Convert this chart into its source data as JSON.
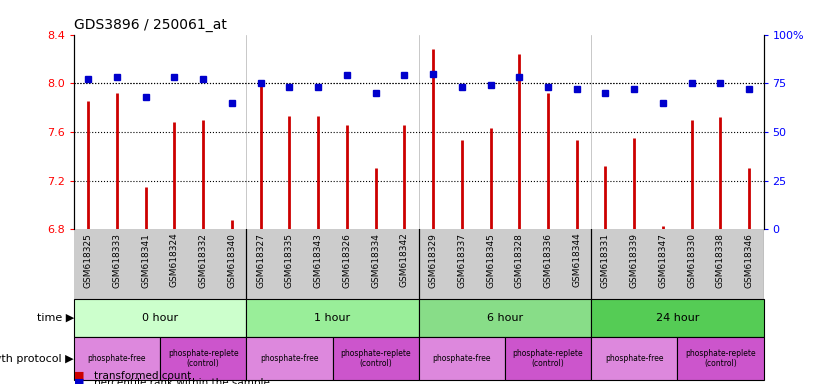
{
  "title": "GDS3896 / 250061_at",
  "samples": [
    "GSM618325",
    "GSM618333",
    "GSM618341",
    "GSM618324",
    "GSM618332",
    "GSM618340",
    "GSM618327",
    "GSM618335",
    "GSM618343",
    "GSM618326",
    "GSM618334",
    "GSM618342",
    "GSM618329",
    "GSM618337",
    "GSM618345",
    "GSM618328",
    "GSM618336",
    "GSM618344",
    "GSM618331",
    "GSM618339",
    "GSM618347",
    "GSM618330",
    "GSM618338",
    "GSM618346"
  ],
  "transformed_count": [
    7.85,
    7.92,
    7.15,
    7.68,
    7.7,
    6.88,
    8.0,
    7.73,
    7.73,
    7.66,
    7.3,
    7.66,
    8.28,
    7.53,
    7.63,
    8.24,
    7.92,
    7.53,
    7.32,
    7.55,
    6.83,
    7.7,
    7.72,
    7.3
  ],
  "percentile_rank": [
    77,
    78,
    68,
    78,
    77,
    65,
    75,
    73,
    73,
    79,
    70,
    79,
    80,
    73,
    74,
    78,
    73,
    72,
    70,
    72,
    65,
    75,
    75,
    72
  ],
  "ylim_left": [
    6.8,
    8.4
  ],
  "ylim_right": [
    0,
    100
  ],
  "yticks_left": [
    6.8,
    7.2,
    7.6,
    8.0,
    8.4
  ],
  "yticks_right": [
    0,
    25,
    50,
    75,
    100
  ],
  "ytick_labels_right": [
    "0",
    "25",
    "50",
    "75",
    "100%"
  ],
  "groups": [
    {
      "label": "0 hour",
      "start": 0,
      "end": 6,
      "color": "#ccffcc"
    },
    {
      "label": "1 hour",
      "start": 6,
      "end": 12,
      "color": "#99ee99"
    },
    {
      "label": "6 hour",
      "start": 12,
      "end": 18,
      "color": "#88dd88"
    },
    {
      "label": "24 hour",
      "start": 18,
      "end": 24,
      "color": "#55cc55"
    }
  ],
  "protocols": [
    {
      "label": "phosphate-free",
      "start": 0,
      "end": 3,
      "color": "#dd88dd"
    },
    {
      "label": "phosphate-replete\n(control)",
      "start": 3,
      "end": 6,
      "color": "#cc55cc"
    },
    {
      "label": "phosphate-free",
      "start": 6,
      "end": 9,
      "color": "#dd88dd"
    },
    {
      "label": "phosphate-replete\n(control)",
      "start": 9,
      "end": 12,
      "color": "#cc55cc"
    },
    {
      "label": "phosphate-free",
      "start": 12,
      "end": 15,
      "color": "#dd88dd"
    },
    {
      "label": "phosphate-replete\n(control)",
      "start": 15,
      "end": 18,
      "color": "#cc55cc"
    },
    {
      "label": "phosphate-free",
      "start": 18,
      "end": 21,
      "color": "#dd88dd"
    },
    {
      "label": "phosphate-replete\n(control)",
      "start": 21,
      "end": 24,
      "color": "#cc55cc"
    }
  ],
  "bar_color": "#cc0000",
  "dot_color": "#0000cc",
  "grid_color": "#000000",
  "bg_color": "#ffffff",
  "xlabel_bg": "#cccccc",
  "time_label": "time",
  "protocol_label": "growth protocol"
}
